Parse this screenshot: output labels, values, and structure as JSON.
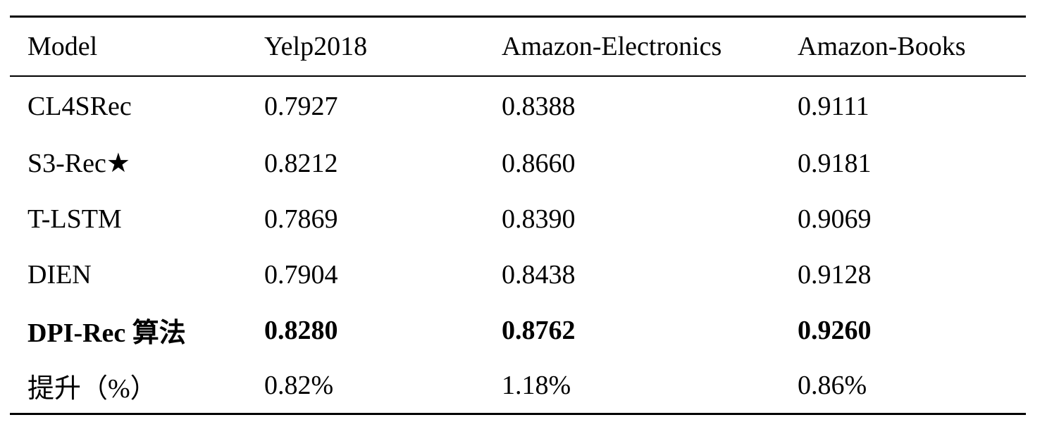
{
  "table": {
    "headers": [
      "Model",
      "Yelp2018",
      "Amazon-Electronics",
      "Amazon-Books"
    ],
    "rows": [
      [
        "CL4SRec",
        "0.7927",
        "0.8388",
        "0.9111"
      ],
      [
        "S3-Rec★",
        "0.8212",
        "0.8660",
        "0.9181"
      ],
      [
        "T-LSTM",
        "0.7869",
        "0.8390",
        "0.9069"
      ],
      [
        "DIEN",
        "0.7904",
        "0.8438",
        "0.9128"
      ],
      [
        "DPI-Rec 算法",
        "0.8280",
        "0.8762",
        "0.9260"
      ],
      [
        "提升（%）",
        "0.82%",
        "1.18%",
        "0.86%"
      ]
    ],
    "bold_row_index": 4
  }
}
